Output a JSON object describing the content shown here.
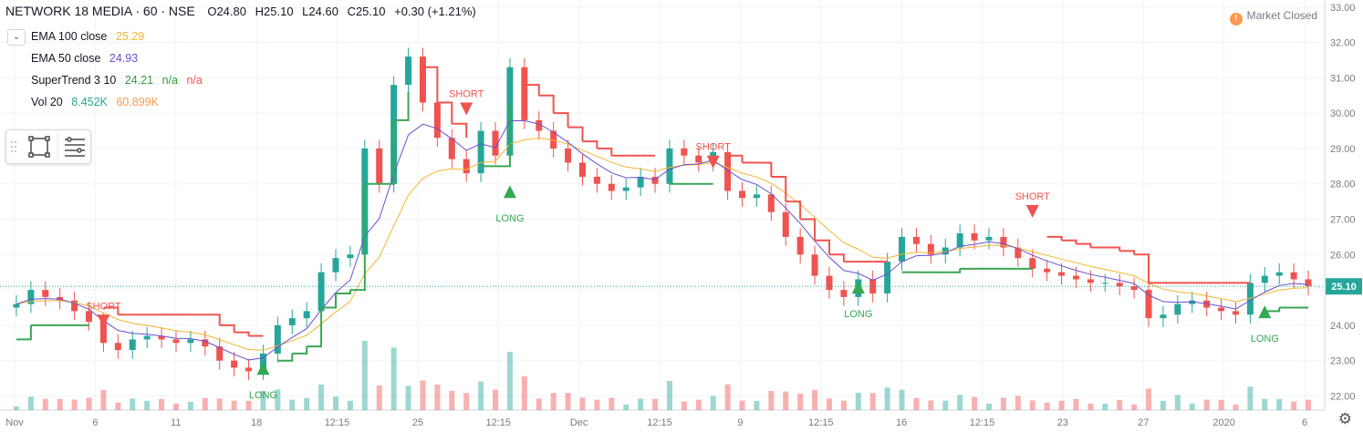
{
  "header": {
    "symbol": "NETWORK 18 MEDIA · 60 · NSE",
    "open": "O24.80",
    "high": "H25.10",
    "low": "L24.60",
    "close": "C25.10",
    "change": "+0.30 (+1.21%)",
    "market_status": "Market Closed",
    "market_icon": "!"
  },
  "indicators": [
    {
      "name": "EMA 100 close",
      "value": "25.29",
      "color": "#f2b632"
    },
    {
      "name": "EMA 50 close",
      "value": "24.93",
      "color": "#6a4fcf"
    },
    {
      "name": "SuperTrend 3 10",
      "value": "24.21",
      "value2": "n/a",
      "value3": "n/a",
      "color": "#2e9f3e",
      "color3": "#ef5350"
    },
    {
      "name": "Vol 20",
      "value": "8.452K",
      "value2": "60.899K",
      "color": "#26a69a",
      "color2": "#ff9850"
    }
  ],
  "colors": {
    "up": "#26a69a",
    "down": "#ef5350",
    "ema100": "#f2b632",
    "ema50": "#6a4fcf",
    "st_up": "#3aa655",
    "st_down": "#f05350",
    "grid": "#f0f3fa",
    "axis_text": "#787b86"
  },
  "chart_data": {
    "type": "line",
    "y_axis": {
      "min": 21.6,
      "max": 33.2,
      "ticks": [
        22.0,
        23.0,
        24.0,
        25.0,
        26.0,
        27.0,
        28.0,
        29.0,
        30.0,
        31.0,
        32.0,
        33.0
      ]
    },
    "last_price": "25.10",
    "x_ticks": [
      "Nov",
      "6",
      "11",
      "18",
      "12:15",
      "25",
      "12:15",
      "Dec",
      "12:15",
      "9",
      "12:15",
      "16",
      "12:15",
      "23",
      "27",
      "2020",
      "6"
    ],
    "approx_close_path": [
      [
        0,
        24.6
      ],
      [
        1,
        25.0
      ],
      [
        2,
        24.8
      ],
      [
        3,
        24.7
      ],
      [
        4,
        24.4
      ],
      [
        5,
        24.1
      ],
      [
        6,
        23.5
      ],
      [
        7,
        23.3
      ],
      [
        8,
        23.6
      ],
      [
        9,
        23.7
      ],
      [
        10,
        23.6
      ],
      [
        11,
        23.5
      ],
      [
        12,
        23.6
      ],
      [
        13,
        23.4
      ],
      [
        14,
        23.0
      ],
      [
        15,
        22.8
      ],
      [
        16,
        22.7
      ],
      [
        17,
        23.2
      ],
      [
        18,
        24.0
      ],
      [
        19,
        24.2
      ],
      [
        20,
        24.4
      ],
      [
        21,
        25.5
      ],
      [
        22,
        25.9
      ],
      [
        23,
        26.0
      ],
      [
        24,
        29.0
      ],
      [
        25,
        28.0
      ],
      [
        26,
        30.8
      ],
      [
        27,
        31.6
      ],
      [
        28,
        30.3
      ],
      [
        29,
        29.3
      ],
      [
        30,
        28.7
      ],
      [
        31,
        28.3
      ],
      [
        32,
        29.5
      ],
      [
        33,
        28.8
      ],
      [
        34,
        31.3
      ],
      [
        35,
        29.8
      ],
      [
        36,
        29.5
      ],
      [
        37,
        29.0
      ],
      [
        38,
        28.6
      ],
      [
        39,
        28.2
      ],
      [
        40,
        28.0
      ],
      [
        41,
        27.8
      ],
      [
        42,
        27.9
      ],
      [
        43,
        28.2
      ],
      [
        44,
        28.0
      ],
      [
        45,
        29.0
      ],
      [
        46,
        28.8
      ],
      [
        47,
        28.6
      ],
      [
        48,
        28.9
      ],
      [
        49,
        27.8
      ],
      [
        50,
        27.6
      ],
      [
        51,
        27.7
      ],
      [
        52,
        27.2
      ],
      [
        53,
        26.5
      ],
      [
        54,
        26.0
      ],
      [
        55,
        25.4
      ],
      [
        56,
        25.0
      ],
      [
        57,
        24.8
      ],
      [
        58,
        25.3
      ],
      [
        59,
        24.9
      ],
      [
        60,
        25.8
      ],
      [
        61,
        26.5
      ],
      [
        62,
        26.3
      ],
      [
        63,
        26.0
      ],
      [
        64,
        26.2
      ],
      [
        65,
        26.6
      ],
      [
        66,
        26.4
      ],
      [
        67,
        26.5
      ],
      [
        68,
        26.2
      ],
      [
        69,
        25.9
      ],
      [
        70,
        25.6
      ],
      [
        71,
        25.5
      ],
      [
        72,
        25.4
      ],
      [
        73,
        25.3
      ],
      [
        74,
        25.2
      ],
      [
        75,
        25.2
      ],
      [
        76,
        25.1
      ],
      [
        77,
        25.0
      ],
      [
        78,
        24.2
      ],
      [
        79,
        24.3
      ],
      [
        80,
        24.6
      ],
      [
        81,
        24.7
      ],
      [
        82,
        24.5
      ],
      [
        83,
        24.4
      ],
      [
        84,
        24.3
      ],
      [
        85,
        25.2
      ],
      [
        86,
        25.4
      ],
      [
        87,
        25.5
      ],
      [
        88,
        25.3
      ],
      [
        89,
        25.1
      ]
    ],
    "signals": [
      {
        "type": "SHORT",
        "bar": 6,
        "price": 24.3
      },
      {
        "type": "LONG",
        "bar": 17,
        "price": 22.6
      },
      {
        "type": "SHORT",
        "bar": 31,
        "price": 30.3
      },
      {
        "type": "LONG",
        "bar": 34,
        "price": 27.6
      },
      {
        "type": "SHORT",
        "bar": 48,
        "price": 28.8
      },
      {
        "type": "LONG",
        "bar": 58,
        "price": 24.9
      },
      {
        "type": "SHORT",
        "bar": 70,
        "price": 27.4
      },
      {
        "type": "LONG",
        "bar": 86,
        "price": 24.2
      }
    ],
    "signal_labels": {
      "short": "SHORT",
      "long": "LONG"
    }
  }
}
